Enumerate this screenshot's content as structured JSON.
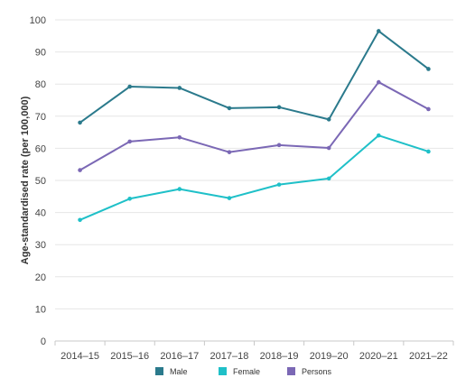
{
  "chart_data": {
    "type": "line",
    "title": "",
    "xlabel": "",
    "ylabel": "Age-standardised rate (per 100,000)",
    "categories": [
      "2014–15",
      "2015–16",
      "2016–17",
      "2017–18",
      "2018–19",
      "2019–20",
      "2020–21",
      "2021–22"
    ],
    "ylim": [
      0,
      100
    ],
    "yticks": [
      0,
      10,
      20,
      30,
      40,
      50,
      60,
      70,
      80,
      90,
      100
    ],
    "grid": true,
    "legend_position": "bottom",
    "series": [
      {
        "name": "Male",
        "color": "#2b7a8c",
        "values": [
          68.0,
          79.2,
          78.8,
          72.5,
          72.8,
          69.0,
          96.5,
          84.7
        ]
      },
      {
        "name": "Female",
        "color": "#1fc0c8",
        "values": [
          37.7,
          44.3,
          47.3,
          44.5,
          48.7,
          50.6,
          64.0,
          59.0
        ]
      },
      {
        "name": "Persons",
        "color": "#7b68b5",
        "values": [
          53.2,
          62.1,
          63.4,
          58.8,
          61.0,
          60.1,
          80.6,
          72.2
        ]
      }
    ]
  }
}
